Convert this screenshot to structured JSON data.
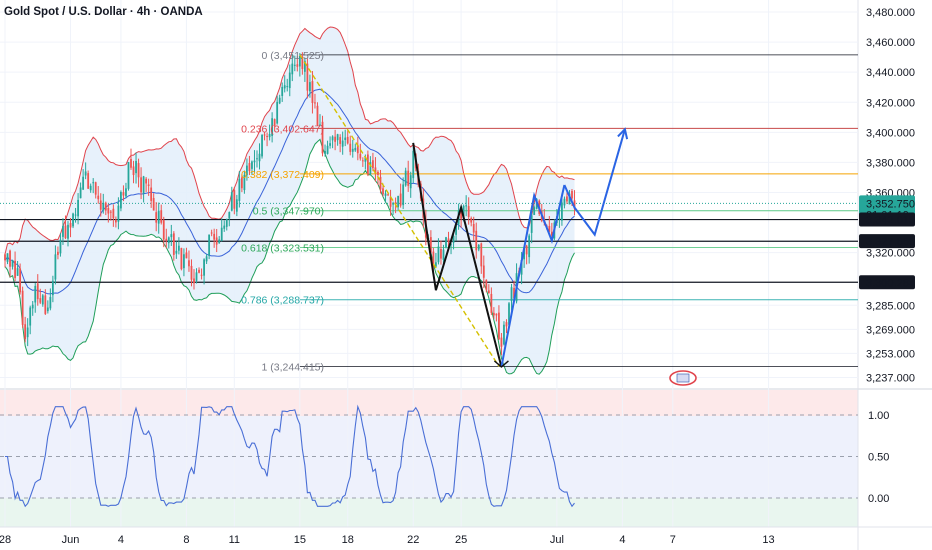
{
  "header": {
    "title": "Gold Spot / U.S. Dollar · 4h · OANDA"
  },
  "colors": {
    "up": "#26a69a",
    "down": "#ef5350",
    "bb_upper": "#e0444c",
    "bb_lower": "#1f9e59",
    "bb_mid": "#3a63d9",
    "bb_fill": "#e3eefa",
    "stoch": "#4a6fd6",
    "forecast": "#2a64e4",
    "pattern": "#111111",
    "trend": "#d4c000",
    "h_orange": "#f5a300",
    "h_green": "#5cc987",
    "h_teal": "#3bb3b3",
    "h_red": "#c74848",
    "h_black": "#131722"
  },
  "price_axis": {
    "ticks": [
      "3,480.000",
      "3,460.000",
      "3,440.000",
      "3,420.000",
      "3,400.000",
      "3,380.000",
      "3,360.000",
      "3,320.000",
      "3,285.000",
      "3,269.000",
      "3,253.000",
      "3,237.000"
    ],
    "tick_values": [
      3480,
      3460,
      3440,
      3420,
      3400,
      3380,
      3360,
      3320,
      3285,
      3269,
      3253,
      3237
    ],
    "labels": [
      {
        "value": 3352.75,
        "text": "3,352.750",
        "sub": "01:01:19",
        "kind": "current"
      },
      {
        "value": 3342.015,
        "text": "3,342.015",
        "kind": "dark"
      },
      {
        "value": 3327.655,
        "text": "3,327.655",
        "kind": "dark"
      },
      {
        "value": 3300.284,
        "text": "3,300.284",
        "kind": "dark"
      }
    ]
  },
  "stoch_axis": {
    "ticks": [
      "1.00",
      "0.50",
      "0.00"
    ],
    "tick_values": [
      1.0,
      0.5,
      0.0
    ]
  },
  "time_axis": {
    "labels": [
      "28",
      "Jun",
      "4",
      "8",
      "11",
      "15",
      "18",
      "22",
      "25",
      "Jul",
      "4",
      "7",
      "13"
    ],
    "label_bars": [
      0,
      26,
      46,
      72,
      91,
      117,
      136,
      162,
      181,
      219,
      245,
      265,
      303
    ]
  },
  "fib_levels": [
    {
      "ratio": "0",
      "value": 3451.525,
      "text": "0 (3,451.525)"
    },
    {
      "ratio": "0.236",
      "value": 3402.647,
      "text": "0.236 (3,402.647)"
    },
    {
      "ratio": "0.382",
      "value": 3372.409,
      "text": "0.382 (3,372.409)"
    },
    {
      "ratio": "0.5",
      "value": 3347.97,
      "text": "0.5 (3,347.970)"
    },
    {
      "ratio": "0.618",
      "value": 3323.531,
      "text": "0.618 (3,323.531)"
    },
    {
      "ratio": "0.786",
      "value": 3288.737,
      "text": "0.786 (3,288.737)"
    },
    {
      "ratio": "1",
      "value": 3244.415,
      "text": "1 (3,244.415)"
    }
  ],
  "chart_data": {
    "type": "candlestick",
    "title": "Gold Spot / U.S. Dollar · 4h · OANDA",
    "ylim": [
      3230,
      3488
    ],
    "anchors": [
      [
        0,
        3316
      ],
      [
        5,
        3305
      ],
      [
        8,
        3262
      ],
      [
        12,
        3298
      ],
      [
        16,
        3280
      ],
      [
        22,
        3330
      ],
      [
        28,
        3348
      ],
      [
        32,
        3375
      ],
      [
        38,
        3355
      ],
      [
        44,
        3346
      ],
      [
        50,
        3382
      ],
      [
        56,
        3362
      ],
      [
        62,
        3338
      ],
      [
        68,
        3322
      ],
      [
        72,
        3310
      ],
      [
        76,
        3305
      ],
      [
        80,
        3322
      ],
      [
        86,
        3335
      ],
      [
        92,
        3360
      ],
      [
        98,
        3378
      ],
      [
        104,
        3395
      ],
      [
        110,
        3425
      ],
      [
        116,
        3446
      ],
      [
        118,
        3448
      ],
      [
        122,
        3420
      ],
      [
        126,
        3395
      ],
      [
        132,
        3390
      ],
      [
        138,
        3386
      ],
      [
        144,
        3375
      ],
      [
        150,
        3365
      ],
      [
        156,
        3354
      ],
      [
        162,
        3378
      ],
      [
        166,
        3345
      ],
      [
        170,
        3312
      ],
      [
        174,
        3323
      ],
      [
        178,
        3336
      ],
      [
        182,
        3350
      ],
      [
        186,
        3333
      ],
      [
        190,
        3310
      ],
      [
        194,
        3275
      ],
      [
        197,
        3259
      ],
      [
        200,
        3285
      ],
      [
        204,
        3308
      ],
      [
        208,
        3330
      ],
      [
        211,
        3355
      ],
      [
        214,
        3345
      ],
      [
        217,
        3336
      ],
      [
        220,
        3350
      ],
      [
        224,
        3360
      ],
      [
        226,
        3353
      ]
    ],
    "fib_from": {
      "bar": 117,
      "value": 3451.525
    },
    "fib_to": {
      "bar": 196,
      "value": 3244.415
    },
    "pattern_zigzag": [
      [
        162,
        3393
      ],
      [
        171,
        3295
      ],
      [
        181,
        3350
      ],
      [
        197,
        3244
      ]
    ],
    "pattern_recovery": [
      [
        197,
        3244
      ],
      [
        210,
        3358
      ],
      [
        217,
        3328
      ],
      [
        222,
        3365
      ]
    ],
    "forecast_path": [
      [
        222,
        3365
      ],
      [
        226,
        3350
      ],
      [
        234,
        3332
      ],
      [
        246,
        3402
      ]
    ],
    "horizontal_lines": [
      {
        "value": 3451.5,
        "from_bar": 117,
        "color": "h_black",
        "width": 0.8
      },
      {
        "value": 3402.6,
        "from_bar": 117,
        "color": "h_red",
        "width": 1.0
      },
      {
        "value": 3372.4,
        "from_bar": 117,
        "color": "h_orange",
        "width": 1.0
      },
      {
        "value": 3347.9,
        "from_bar": 117,
        "color": "h_green",
        "width": 1.0
      },
      {
        "value": 3342.0,
        "from_bar": -5,
        "color": "h_black",
        "width": 1.2
      },
      {
        "value": 3327.6,
        "from_bar": -5,
        "color": "h_black",
        "width": 1.2
      },
      {
        "value": 3323.5,
        "from_bar": 117,
        "color": "h_green",
        "width": 0.9
      },
      {
        "value": 3300.3,
        "from_bar": -5,
        "color": "h_black",
        "width": 1.2
      },
      {
        "value": 3288.7,
        "from_bar": 117,
        "color": "h_teal",
        "width": 1.0
      },
      {
        "value": 3244.4,
        "from_bar": 117,
        "color": "h_black",
        "width": 0.8
      }
    ],
    "current_price": 3352.75
  }
}
